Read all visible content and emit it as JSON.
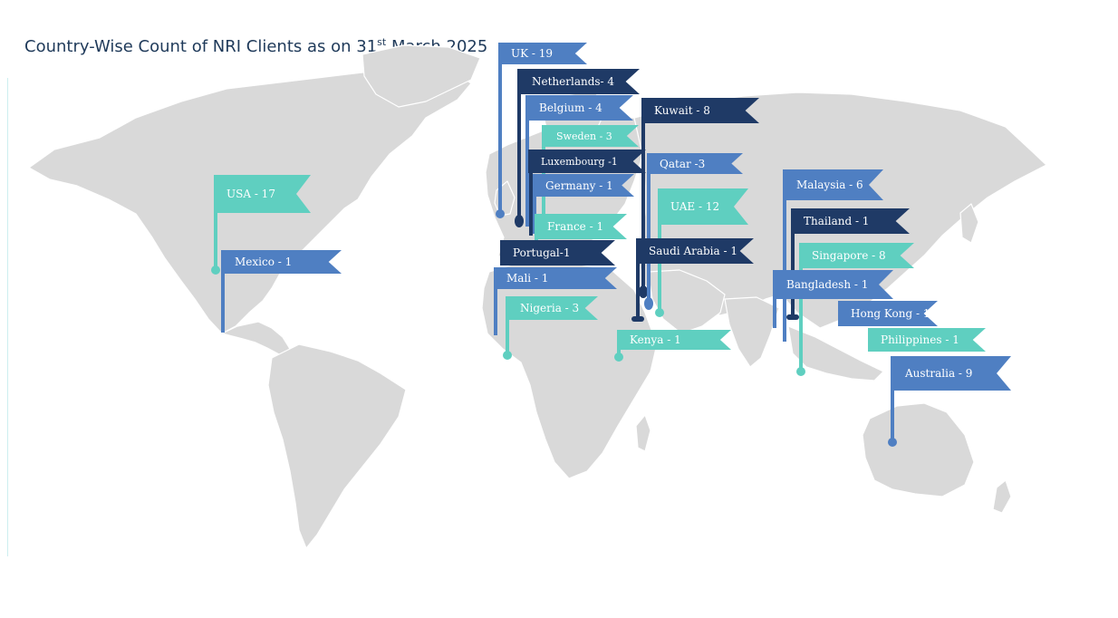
{
  "title": {
    "main": "Country-Wise Count of NRI Clients as on 31",
    "sup": "st",
    "rest": " March 2025"
  },
  "colors": {
    "land": "#d9d9d9",
    "teal": "#5fcfc0",
    "mid": "#4f7fc2",
    "navy": "#1f3a66"
  },
  "flags": [
    {
      "id": "uk",
      "label": "UK - 19",
      "color": "mid"
    },
    {
      "id": "netherlands",
      "label": "Netherlands- 4",
      "color": "navy"
    },
    {
      "id": "belgium",
      "label": "Belgium - 4",
      "color": "mid"
    },
    {
      "id": "sweden",
      "label": "Sweden - 3",
      "color": "teal"
    },
    {
      "id": "luxembourg",
      "label": "Luxembourg -1",
      "color": "navy"
    },
    {
      "id": "germany",
      "label": "Germany - 1",
      "color": "mid"
    },
    {
      "id": "france",
      "label": "France - 1",
      "color": "teal"
    },
    {
      "id": "portugal",
      "label": "Portugal-1",
      "color": "navy"
    },
    {
      "id": "mali",
      "label": "Mali - 1",
      "color": "mid"
    },
    {
      "id": "nigeria",
      "label": "Nigeria - 3",
      "color": "teal"
    },
    {
      "id": "kuwait",
      "label": "Kuwait - 8",
      "color": "navy"
    },
    {
      "id": "qatar",
      "label": "Qatar -3",
      "color": "mid"
    },
    {
      "id": "uae",
      "label": "UAE - 12",
      "color": "teal"
    },
    {
      "id": "saudi",
      "label": "Saudi Arabia - 1",
      "color": "navy"
    },
    {
      "id": "kenya",
      "label": "Kenya - 1",
      "color": "teal"
    },
    {
      "id": "usa",
      "label": "USA - 17",
      "color": "teal"
    },
    {
      "id": "mexico",
      "label": "Mexico - 1",
      "color": "mid"
    },
    {
      "id": "malaysia",
      "label": "Malaysia - 6",
      "color": "mid"
    },
    {
      "id": "thailand",
      "label": "Thailand - 1",
      "color": "navy"
    },
    {
      "id": "singapore",
      "label": "Singapore - 8",
      "color": "teal"
    },
    {
      "id": "bangladesh",
      "label": "Bangladesh - 1",
      "color": "mid"
    },
    {
      "id": "hongkong",
      "label": "Hong Kong - 1",
      "color": "mid"
    },
    {
      "id": "philippines",
      "label": "Philippines - 1",
      "color": "teal"
    },
    {
      "id": "australia",
      "label": "Australia - 9",
      "color": "mid"
    }
  ]
}
